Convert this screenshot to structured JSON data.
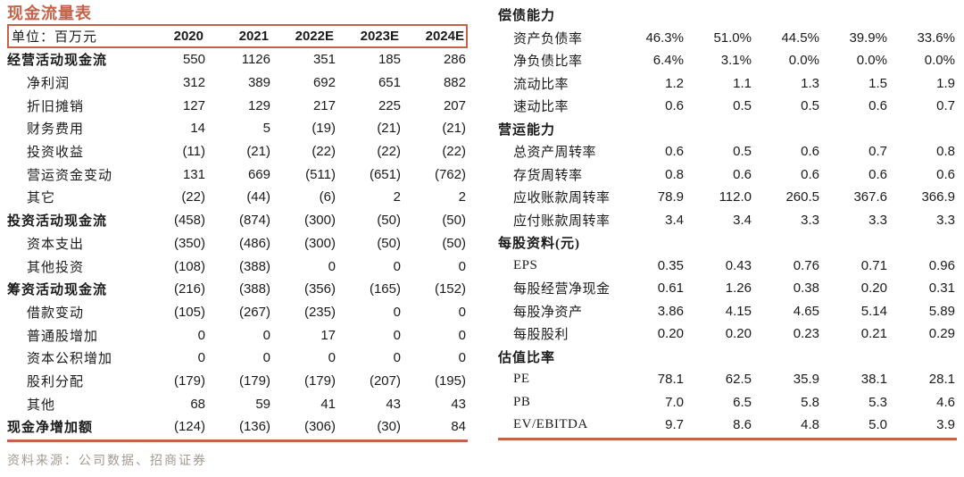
{
  "title": "现金流量表",
  "source_note": "资料来源：公司数据、招商证券",
  "colors": {
    "accent": "#c4624a",
    "text": "#1a1a1a",
    "source_text": "#a29a91"
  },
  "cash_flow_table": {
    "unit_label": "单位：百万元",
    "years": [
      "2020",
      "2021",
      "2022E",
      "2023E",
      "2024E"
    ],
    "rows": [
      {
        "label": "经营活动现金流",
        "style": "section",
        "values": [
          "550",
          "1126",
          "351",
          "185",
          "286"
        ]
      },
      {
        "label": "净利润",
        "style": "item",
        "values": [
          "312",
          "389",
          "692",
          "651",
          "882"
        ]
      },
      {
        "label": "折旧摊销",
        "style": "item",
        "values": [
          "127",
          "129",
          "217",
          "225",
          "207"
        ]
      },
      {
        "label": "财务费用",
        "style": "item",
        "values": [
          "14",
          "5",
          "(19)",
          "(21)",
          "(21)"
        ]
      },
      {
        "label": "投资收益",
        "style": "item",
        "values": [
          "(11)",
          "(21)",
          "(22)",
          "(22)",
          "(22)"
        ]
      },
      {
        "label": "营运资金变动",
        "style": "item",
        "values": [
          "131",
          "669",
          "(511)",
          "(651)",
          "(762)"
        ]
      },
      {
        "label": "其它",
        "style": "item",
        "values": [
          "(22)",
          "(44)",
          "(6)",
          "2",
          "2"
        ]
      },
      {
        "label": "投资活动现金流",
        "style": "section",
        "values": [
          "(458)",
          "(874)",
          "(300)",
          "(50)",
          "(50)"
        ]
      },
      {
        "label": "资本支出",
        "style": "item",
        "values": [
          "(350)",
          "(486)",
          "(300)",
          "(50)",
          "(50)"
        ]
      },
      {
        "label": "其他投资",
        "style": "item",
        "values": [
          "(108)",
          "(388)",
          "0",
          "0",
          "0"
        ]
      },
      {
        "label": "筹资活动现金流",
        "style": "section",
        "values": [
          "(216)",
          "(388)",
          "(356)",
          "(165)",
          "(152)"
        ]
      },
      {
        "label": "借款变动",
        "style": "item",
        "values": [
          "(105)",
          "(267)",
          "(235)",
          "0",
          "0"
        ]
      },
      {
        "label": "普通股增加",
        "style": "item",
        "values": [
          "0",
          "0",
          "17",
          "0",
          "0"
        ]
      },
      {
        "label": "资本公积增加",
        "style": "item",
        "values": [
          "0",
          "0",
          "0",
          "0",
          "0"
        ]
      },
      {
        "label": "股利分配",
        "style": "item",
        "values": [
          "(179)",
          "(179)",
          "(179)",
          "(207)",
          "(195)"
        ]
      },
      {
        "label": "其他",
        "style": "item",
        "values": [
          "68",
          "59",
          "41",
          "43",
          "43"
        ]
      },
      {
        "label": "现金净增加额",
        "style": "section",
        "values": [
          "(124)",
          "(136)",
          "(306)",
          "(30)",
          "84"
        ]
      }
    ]
  },
  "ratios_table": {
    "rows": [
      {
        "label": "偿债能力",
        "style": "section",
        "values": [
          "",
          "",
          "",
          "",
          ""
        ]
      },
      {
        "label": "资产负债率",
        "style": "item",
        "values": [
          "46.3%",
          "51.0%",
          "44.5%",
          "39.9%",
          "33.6%"
        ]
      },
      {
        "label": "净负债比率",
        "style": "item",
        "values": [
          "6.4%",
          "3.1%",
          "0.0%",
          "0.0%",
          "0.0%"
        ]
      },
      {
        "label": "流动比率",
        "style": "item",
        "values": [
          "1.2",
          "1.1",
          "1.3",
          "1.5",
          "1.9"
        ]
      },
      {
        "label": "速动比率",
        "style": "item",
        "values": [
          "0.6",
          "0.5",
          "0.5",
          "0.6",
          "0.7"
        ]
      },
      {
        "label": "营运能力",
        "style": "section",
        "values": [
          "",
          "",
          "",
          "",
          ""
        ]
      },
      {
        "label": "总资产周转率",
        "style": "item",
        "values": [
          "0.6",
          "0.5",
          "0.6",
          "0.7",
          "0.8"
        ]
      },
      {
        "label": "存货周转率",
        "style": "item",
        "values": [
          "0.8",
          "0.6",
          "0.6",
          "0.6",
          "0.6"
        ]
      },
      {
        "label": "应收账款周转率",
        "style": "item",
        "values": [
          "78.9",
          "112.0",
          "260.5",
          "367.6",
          "366.9"
        ]
      },
      {
        "label": "应付账款周转率",
        "style": "item",
        "values": [
          "3.4",
          "3.4",
          "3.3",
          "3.3",
          "3.3"
        ]
      },
      {
        "label": "每股资料(元)",
        "style": "section",
        "values": [
          "",
          "",
          "",
          "",
          ""
        ]
      },
      {
        "label": "EPS",
        "style": "item",
        "values": [
          "0.35",
          "0.43",
          "0.76",
          "0.71",
          "0.96"
        ]
      },
      {
        "label": "每股经营净现金",
        "style": "item",
        "values": [
          "0.61",
          "1.26",
          "0.38",
          "0.20",
          "0.31"
        ]
      },
      {
        "label": "每股净资产",
        "style": "item",
        "values": [
          "3.86",
          "4.15",
          "4.65",
          "5.14",
          "5.89"
        ]
      },
      {
        "label": "每股股利",
        "style": "item",
        "values": [
          "0.20",
          "0.20",
          "0.23",
          "0.21",
          "0.29"
        ]
      },
      {
        "label": "估值比率",
        "style": "section",
        "values": [
          "",
          "",
          "",
          "",
          ""
        ]
      },
      {
        "label": "PE",
        "style": "item",
        "values": [
          "78.1",
          "62.5",
          "35.9",
          "38.1",
          "28.1"
        ]
      },
      {
        "label": "PB",
        "style": "item",
        "values": [
          "7.0",
          "6.5",
          "5.8",
          "5.3",
          "4.6"
        ]
      },
      {
        "label": "EV/EBITDA",
        "style": "item",
        "values": [
          "9.7",
          "8.6",
          "4.8",
          "5.0",
          "3.9"
        ]
      }
    ]
  }
}
